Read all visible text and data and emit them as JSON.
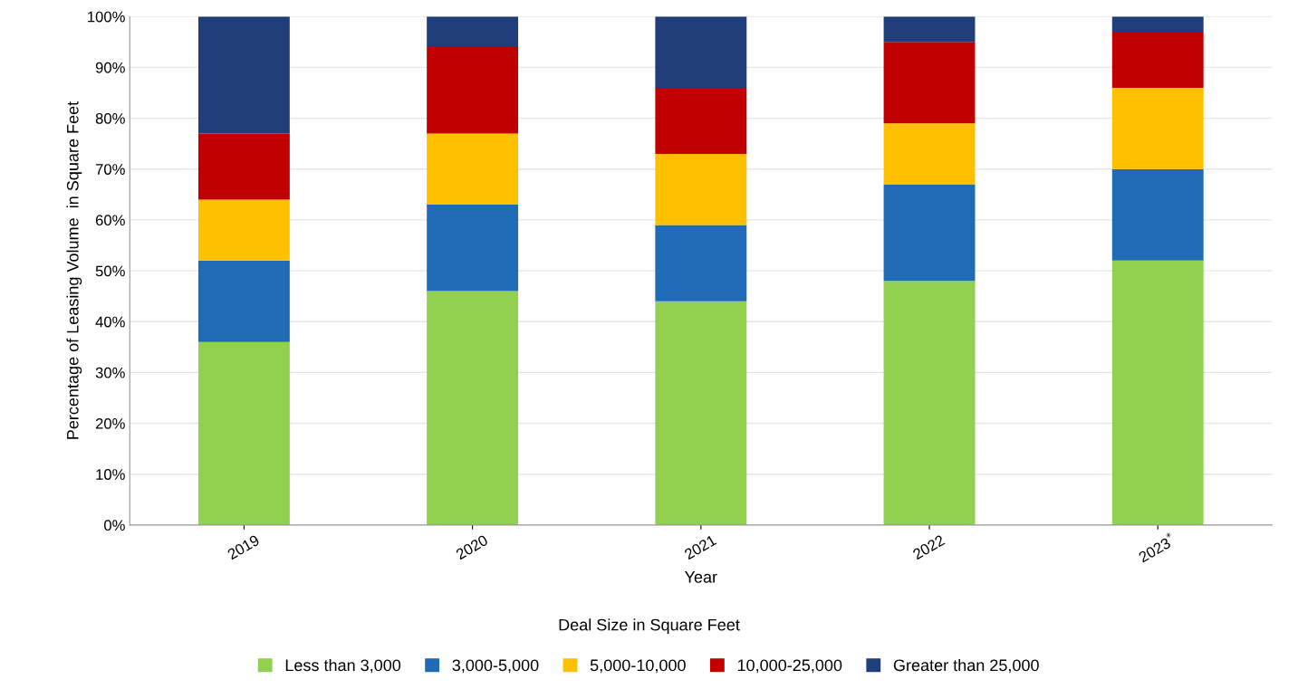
{
  "chart_data": {
    "type": "bar",
    "stacked": true,
    "xlabel": "Year",
    "ylabel": "Percentage of Leasing Volume  in Square Feet",
    "legend_title": "Deal Size in Square Feet",
    "categories": [
      "2019",
      "2020",
      "2021",
      "2022",
      "2023$^{*}$"
    ],
    "series": [
      {
        "name": "Less than 3,000",
        "color": "#92d050",
        "values": [
          36,
          46,
          44,
          48,
          52
        ]
      },
      {
        "name": "3,000-5,000",
        "color": "#1f6bb5",
        "values": [
          16,
          17,
          15,
          19,
          18
        ]
      },
      {
        "name": "5,000-10,000",
        "color": "#ffc000",
        "values": [
          12,
          14,
          14,
          12,
          16
        ]
      },
      {
        "name": "10,000-25,000",
        "color": "#c00000",
        "values": [
          13,
          17,
          13,
          16,
          11
        ]
      },
      {
        "name": "Greater than 25,000",
        "color": "#203f7a",
        "values": [
          23,
          6,
          14,
          5,
          3
        ]
      }
    ],
    "ylim": [
      0,
      100
    ],
    "yticks": [
      {
        "value": 0,
        "label": "0%"
      },
      {
        "value": 10,
        "label": "10%"
      },
      {
        "value": 20,
        "label": "20%"
      },
      {
        "value": 30,
        "label": "30%"
      },
      {
        "value": 40,
        "label": "40%"
      },
      {
        "value": 50,
        "label": "50%"
      },
      {
        "value": 60,
        "label": "60%"
      },
      {
        "value": 70,
        "label": "70%"
      },
      {
        "value": 80,
        "label": "80%"
      },
      {
        "value": 90,
        "label": "90%"
      },
      {
        "value": 100,
        "label": "100%"
      }
    ],
    "grid": "y",
    "legend": "bottom"
  }
}
